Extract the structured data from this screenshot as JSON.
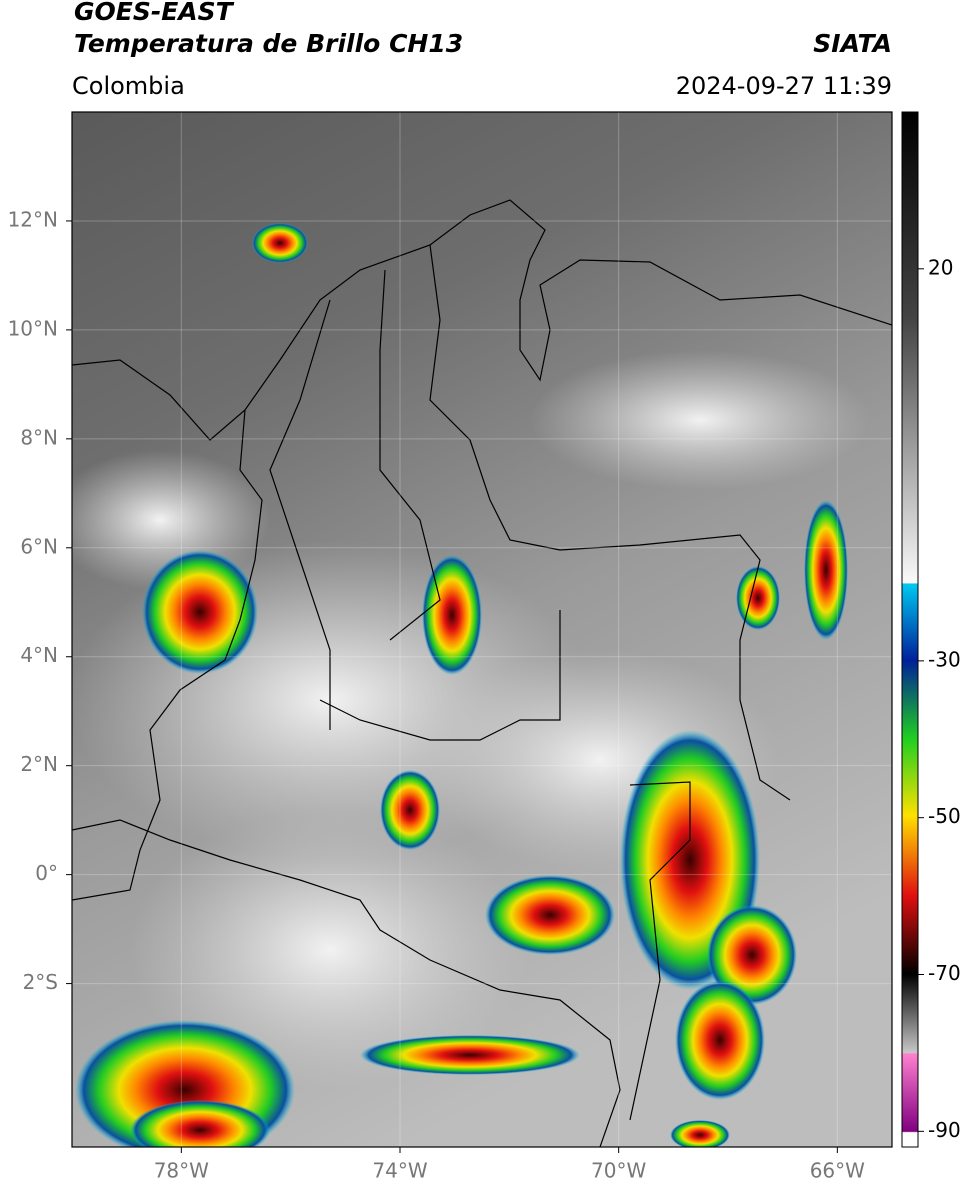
{
  "header": {
    "title": [
      "GOES-EAST",
      "Temperatura de Brillo CH13"
    ],
    "source": "SIATA",
    "region": "Colombia",
    "timestamp": "2024-09-27 11:39"
  },
  "map": {
    "xlim": [
      -80,
      -65
    ],
    "ylim": [
      -5,
      14
    ],
    "xticks": [
      {
        "value": -78,
        "label": "78°W"
      },
      {
        "value": -74,
        "label": "74°W"
      },
      {
        "value": -70,
        "label": "70°W"
      },
      {
        "value": -66,
        "label": "66°W"
      }
    ],
    "yticks": [
      {
        "value": 12,
        "label": "12°N"
      },
      {
        "value": 10,
        "label": "10°N"
      },
      {
        "value": 8,
        "label": "8°N"
      },
      {
        "value": 6,
        "label": "6°N"
      },
      {
        "value": 4,
        "label": "4°N"
      },
      {
        "value": 2,
        "label": "2°N"
      },
      {
        "value": 0,
        "label": "0°"
      },
      {
        "value": -2,
        "label": "2°S"
      }
    ]
  },
  "colorbar": {
    "lim": [
      -92,
      40
    ],
    "ticks": [
      20,
      -30,
      -50,
      -70,
      -90
    ]
  }
}
